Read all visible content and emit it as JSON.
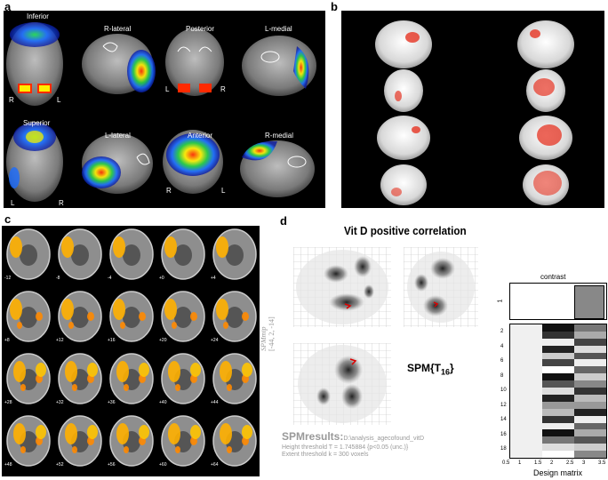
{
  "panels": {
    "a": {
      "letter": "a",
      "views": [
        {
          "label": "Inferior",
          "left": "R",
          "right": "L"
        },
        {
          "label": "R-lateral"
        },
        {
          "label": "Posterior",
          "left": "L",
          "right": "R"
        },
        {
          "label": "L-medial"
        },
        {
          "label": "Superior",
          "left": "L",
          "right": "R"
        },
        {
          "label": "L-lateral"
        },
        {
          "label": "Anterior",
          "left": "R",
          "right": "L"
        },
        {
          "label": "R-medial"
        }
      ]
    },
    "b": {
      "letter": "b"
    },
    "c": {
      "letter": "c",
      "slice_numbers": [
        "-12",
        "-8",
        "-4",
        "+0",
        "+4",
        "+8",
        "+12",
        "+16",
        "+20",
        "+24",
        "+28",
        "+32",
        "+36",
        "+40",
        "+44",
        "+48",
        "+52",
        "+56",
        "+60",
        "+64"
      ]
    },
    "d": {
      "letter": "d",
      "title": "Vit D positive correlation",
      "coords": "[-44, 2, -14]",
      "coords_label": "SPMmip",
      "spm_label": "SPM{T",
      "spm_sub": "16",
      "spm_close": "}",
      "results_title": "SPMresults:",
      "results_path": "D:\\analysis_agecofound_vitD",
      "height_threshold": "Height threshold T = 1.745884  {p<0.05 (unc.)}",
      "extent_threshold": "Extent threshold k = 300 voxels",
      "contrast_label": "contrast",
      "contrast_ytick": "1",
      "design_matrix_label": "Design matrix",
      "dm_yticks": [
        "2",
        "4",
        "6",
        "8",
        "10",
        "12",
        "14",
        "16",
        "18"
      ],
      "dm_xticks": [
        "0.5",
        "1",
        "1.5",
        "2",
        "2.5",
        "3",
        "3.5"
      ],
      "contrast_values": [
        0,
        0,
        1
      ],
      "colors": {
        "activation_hot": "#ffd400",
        "activation_red": "#ff2200",
        "bg": "#000000"
      }
    }
  }
}
